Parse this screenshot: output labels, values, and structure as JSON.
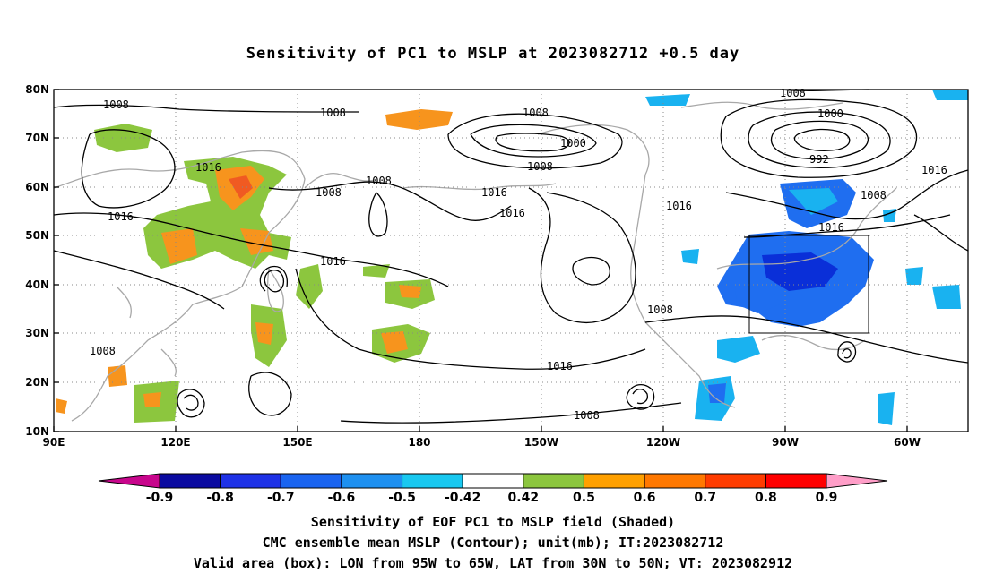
{
  "title": "Sensitivity of PC1 to MSLP at 2023082712 +0.5 day",
  "map": {
    "lat_labels": [
      "80N",
      "70N",
      "60N",
      "50N",
      "40N",
      "30N",
      "20N",
      "10N"
    ],
    "lon_labels": [
      "90E",
      "120E",
      "150E",
      "180",
      "150W",
      "120W",
      "90W",
      "60W"
    ],
    "contour_labels": [
      "1008",
      "1008",
      "1008",
      "1000",
      "1008",
      "1000",
      "992",
      "1016",
      "1016",
      "1008",
      "1008",
      "1016",
      "1016",
      "1016",
      "1016",
      "1008",
      "1016",
      "1008",
      "1008",
      "1008",
      "1016",
      "1008",
      "1016"
    ],
    "box": {
      "lon_range": "95W to 65W",
      "lat_range": "30N to 50N"
    },
    "colors": {
      "neg_strong": "#0a2fd8",
      "neg_mid": "#1f6ef0",
      "neg_light": "#19b2f0",
      "pos_light": "#8cc63e",
      "pos_mid": "#f7941d",
      "pos_strong": "#f05a22",
      "coast": "#a8a8a8",
      "contour": "#000000"
    }
  },
  "colorbar": {
    "labels": [
      "-0.9",
      "-0.8",
      "-0.7",
      "-0.6",
      "-0.5",
      "-0.42",
      "0.42",
      "0.5",
      "0.6",
      "0.7",
      "0.8",
      "0.9"
    ],
    "colors": [
      "#c8068c",
      "#0a0aa0",
      "#1e32e6",
      "#1a64f0",
      "#1e90f0",
      "#19c8f0",
      "#ffffff",
      "#8cc63e",
      "#ffa000",
      "#ff7800",
      "#ff3c00",
      "#ff0000",
      "#ff9ec8"
    ]
  },
  "captions": {
    "line1": "Sensitivity of EOF PC1 to MSLP field (Shaded)",
    "line2": "CMC ensemble mean MSLP (Contour); unit(mb); IT:2023082712",
    "line3": "Valid area (box): LON from 95W to 65W, LAT from 30N to 50N; VT: 2023082912"
  }
}
